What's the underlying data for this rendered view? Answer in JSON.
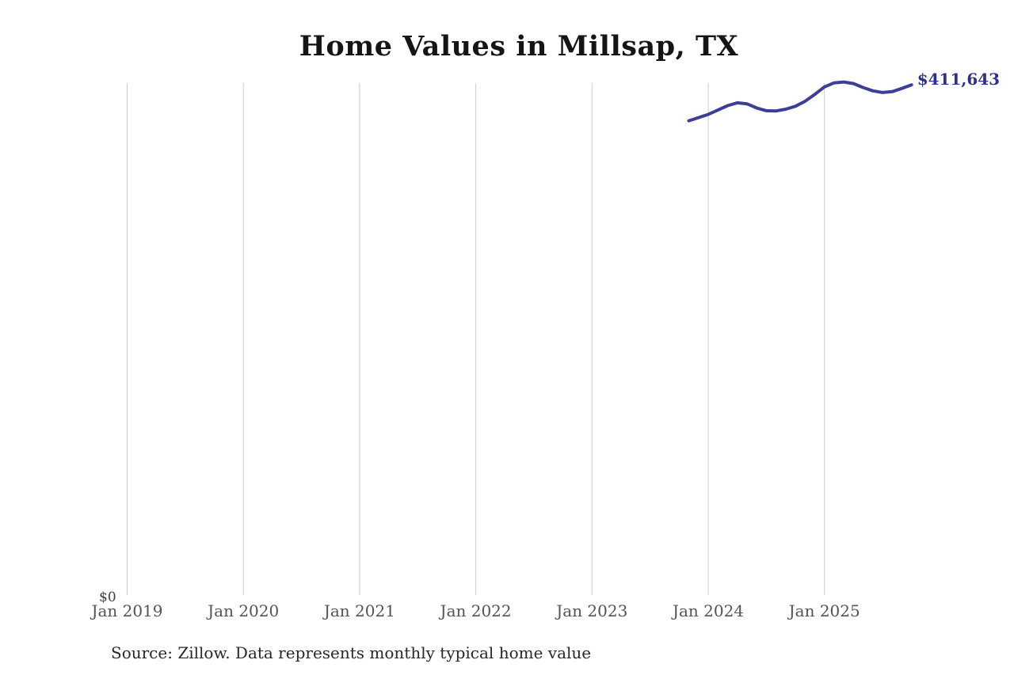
{
  "header": {
    "title": "Home Values in Millsap, TX"
  },
  "chart_data": {
    "type": "line",
    "title": "Home Values in Millsap, TX",
    "xlabel": "",
    "ylabel": "",
    "ylim": [
      0,
      413000
    ],
    "grid": "vertical-only",
    "legend": "none",
    "y_zero_label": "$0",
    "end_label": "$411,643",
    "x_ticks": [
      {
        "label": "Jan 2019",
        "year": 2019
      },
      {
        "label": "Jan 2020",
        "year": 2020
      },
      {
        "label": "Jan 2021",
        "year": 2021
      },
      {
        "label": "Jan 2022",
        "year": 2022
      },
      {
        "label": "Jan 2023",
        "year": 2023
      },
      {
        "label": "Jan 2024",
        "year": 2024
      },
      {
        "label": "Jan 2025",
        "year": 2025
      }
    ],
    "series": [
      {
        "name": "Monthly typical home value",
        "color": "#3e3e9a",
        "points": [
          {
            "date": "2023-11",
            "value": 383000
          },
          {
            "date": "2023-12",
            "value": 385500
          },
          {
            "date": "2024-01",
            "value": 388000
          },
          {
            "date": "2024-02",
            "value": 391500
          },
          {
            "date": "2024-03",
            "value": 395000
          },
          {
            "date": "2024-04",
            "value": 397300
          },
          {
            "date": "2024-05",
            "value": 396500
          },
          {
            "date": "2024-06",
            "value": 393200
          },
          {
            "date": "2024-07",
            "value": 391000
          },
          {
            "date": "2024-08",
            "value": 390800
          },
          {
            "date": "2024-09",
            "value": 392200
          },
          {
            "date": "2024-10",
            "value": 394500
          },
          {
            "date": "2024-11",
            "value": 398500
          },
          {
            "date": "2024-12",
            "value": 404000
          },
          {
            "date": "2025-01",
            "value": 410000
          },
          {
            "date": "2025-02",
            "value": 413200
          },
          {
            "date": "2025-03",
            "value": 413900
          },
          {
            "date": "2025-04",
            "value": 412600
          },
          {
            "date": "2025-05",
            "value": 409500
          },
          {
            "date": "2025-06",
            "value": 406800
          },
          {
            "date": "2025-07",
            "value": 405500
          },
          {
            "date": "2025-08",
            "value": 406200
          },
          {
            "date": "2025-09",
            "value": 408800
          },
          {
            "date": "2025-10",
            "value": 411643
          }
        ]
      }
    ]
  },
  "footer": {
    "source": "Source: Zillow. Data represents monthly typical home value"
  },
  "colors": {
    "line": "#3e3e9a",
    "end_label": "#2d3189",
    "gridline": "#cccccc",
    "tick_text": "#545454",
    "title_text": "#151515",
    "source_text": "#282828",
    "background": "#ffffff"
  }
}
